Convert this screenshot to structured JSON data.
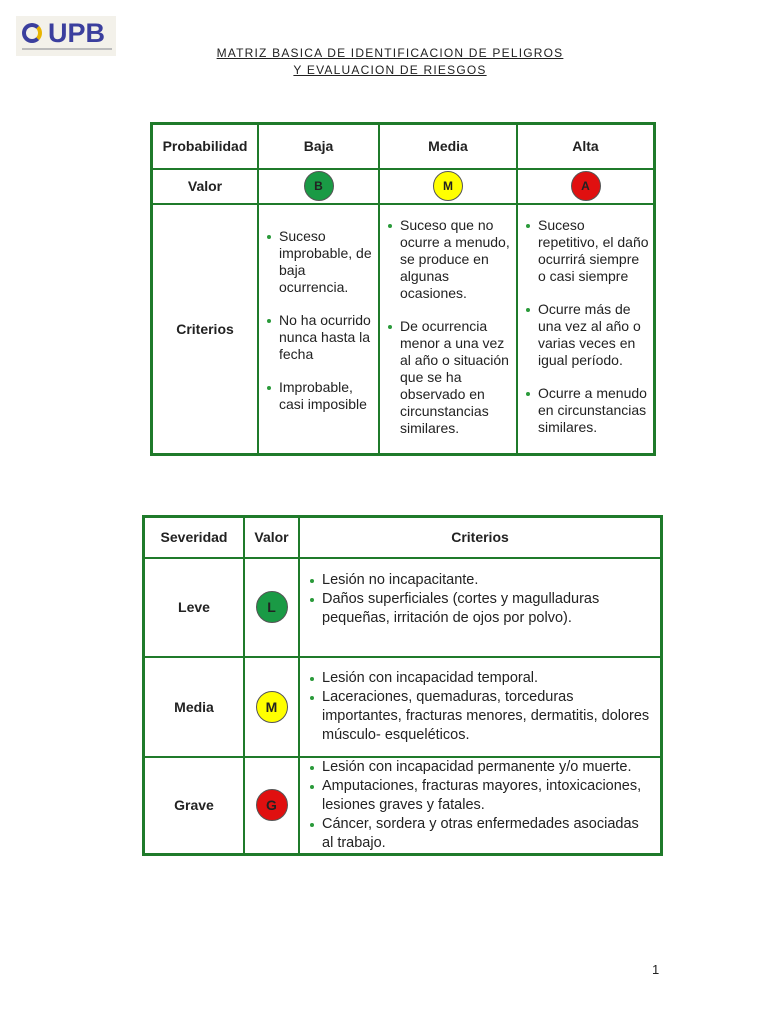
{
  "header": {
    "logo_text": "UPB",
    "title_line1": "MATRIZ BASICA DE IDENTIFICACION DE PELIGROS",
    "title_line2": "Y EVALUACION DE RIESGOS"
  },
  "probability_table": {
    "headers": [
      "Probabilidad",
      "Baja",
      "Media",
      "Alta"
    ],
    "valor_label": "Valor",
    "values": [
      {
        "letter": "B",
        "color": "#1a9a45"
      },
      {
        "letter": "M",
        "color": "#ffff00"
      },
      {
        "letter": "A",
        "color": "#e01010"
      }
    ],
    "criterios_label": "Criterios",
    "criteria": [
      [
        "Suceso improbable, de baja ocurrencia.",
        "No ha ocurrido nunca hasta la fecha",
        "Improbable, casi imposible"
      ],
      [
        "Suceso que no ocurre a menudo, se produce en algunas ocasiones.",
        "De ocurrencia menor a una vez al año o situación que se ha observado en circunstancias similares."
      ],
      [
        "Suceso repetitivo, el daño ocurrirá siempre o casi siempre",
        "Ocurre más de una vez al año o varias veces en igual período.",
        "Ocurre a menudo en circunstancias similares."
      ]
    ]
  },
  "severity_table": {
    "headers": [
      "Severidad",
      "Valor",
      "Criterios"
    ],
    "rows": [
      {
        "label": "Leve",
        "letter": "L",
        "color": "#1a9a45",
        "criteria": [
          "Lesión no incapacitante.",
          "Daños superficiales (cortes y magulladuras pequeñas, irritación de ojos por polvo)."
        ]
      },
      {
        "label": "Media",
        "letter": "M",
        "color": "#ffff00",
        "criteria": [
          "Lesión con incapacidad temporal.",
          "Laceraciones, quemaduras, torceduras importantes, fracturas menores, dermatitis, dolores músculo- esqueléticos."
        ]
      },
      {
        "label": "Grave",
        "letter": "G",
        "color": "#e01010",
        "criteria": [
          "Lesión con incapacidad permanente y/o muerte.",
          "Amputaciones, fracturas mayores, intoxicaciones, lesiones graves y  fatales.",
          "Cáncer, sordera y otras enfermedades asociadas al trabajo."
        ]
      }
    ]
  },
  "page_number": "1"
}
